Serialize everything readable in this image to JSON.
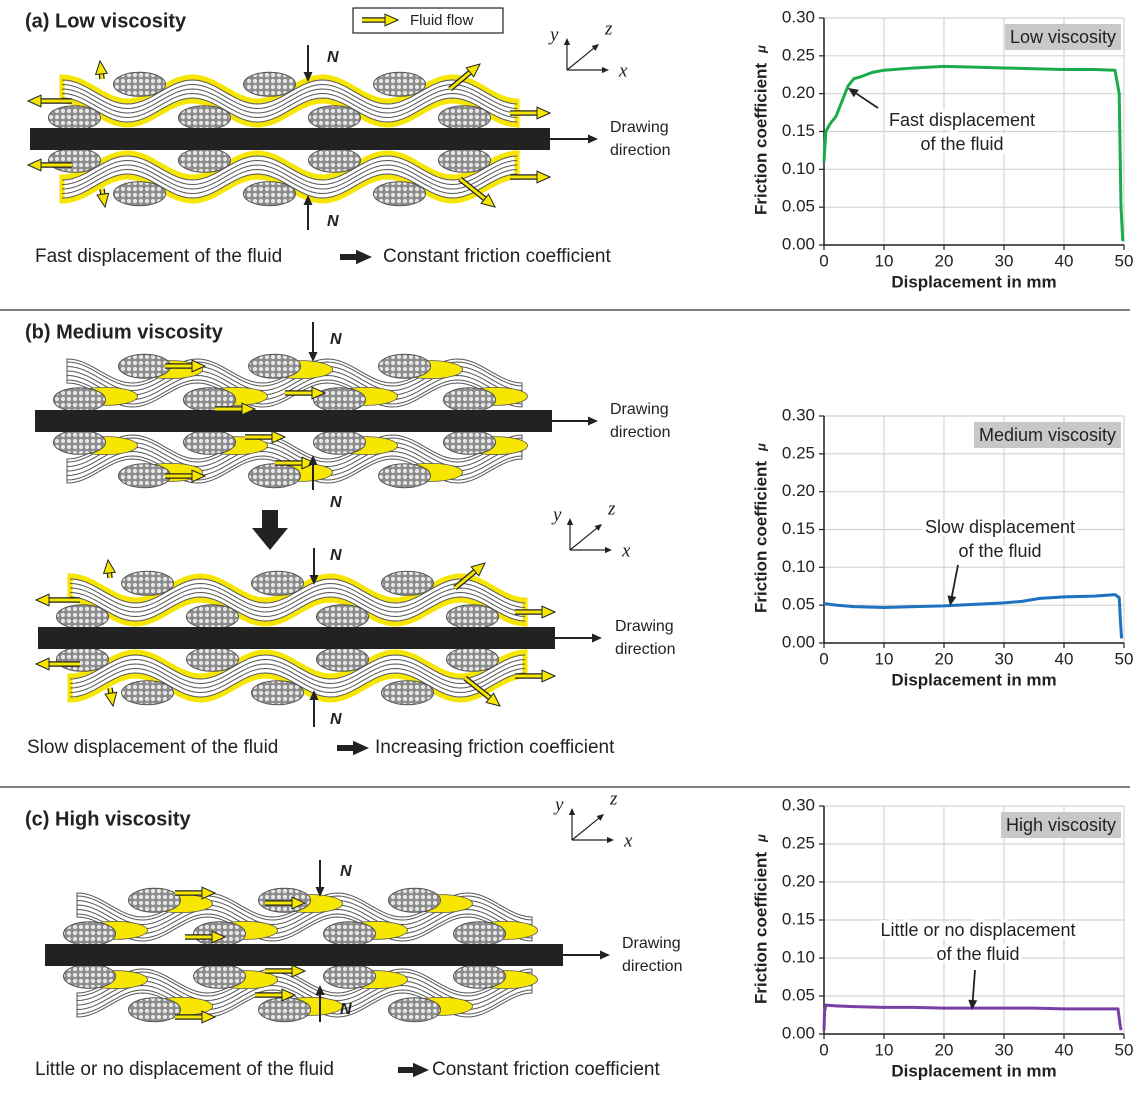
{
  "legend": "Fluid flow",
  "panels": [
    {
      "title": "(a) Low viscosity",
      "axes": [
        "y",
        "z",
        "x"
      ],
      "force": "N",
      "drawing": [
        "Drawing",
        "direction"
      ],
      "cause": "Fast displacement of the fluid",
      "effect": "Constant friction coefficient"
    },
    {
      "title": "(b) Medium viscosity",
      "axes": [
        "y",
        "z",
        "x"
      ],
      "force": "N",
      "drawing": [
        "Drawing",
        "direction"
      ],
      "cause": "Slow displacement of the fluid",
      "effect": "Increasing friction coefficient"
    },
    {
      "title": "(c) High viscosity",
      "axes": [
        "y",
        "z",
        "x"
      ],
      "force": "N",
      "drawing": [
        "Drawing",
        "direction"
      ],
      "cause": "Little or no displacement of the fluid",
      "effect": "Constant friction coefficient"
    }
  ],
  "chart_data": [
    {
      "type": "line",
      "xlabel": "Displacement in mm",
      "ylabel": "Friction coefficient",
      "ylabel_symbol": "μ",
      "annotation": [
        "Fast displacement",
        "of the fluid"
      ],
      "xlim": [
        0,
        50
      ],
      "ylim": [
        0,
        0.3
      ],
      "xticks": [
        0,
        10,
        20,
        30,
        40,
        50
      ],
      "yticks": [
        {
          "value": 0,
          "label": "0.00"
        },
        {
          "value": 0.05,
          "label": "0.05"
        },
        {
          "value": 0.1,
          "label": "0.10"
        },
        {
          "value": 0.15,
          "label": "0.15"
        },
        {
          "value": 0.2,
          "label": "0.20"
        },
        {
          "value": 0.25,
          "label": "0.25"
        },
        {
          "value": 0.3,
          "label": "0.30"
        }
      ],
      "grid": true,
      "x": [
        0,
        0.3,
        1,
        2,
        3,
        4,
        5,
        6,
        8,
        10,
        15,
        20,
        25,
        30,
        35,
        40,
        45,
        48.5,
        49.2,
        49.5,
        49.8
      ],
      "series": [
        {
          "name": "Low viscosity",
          "color": "#1aab4b",
          "values": [
            0.11,
            0.15,
            0.16,
            0.17,
            0.19,
            0.21,
            0.22,
            0.222,
            0.228,
            0.231,
            0.234,
            0.236,
            0.235,
            0.234,
            0.233,
            0.232,
            0.232,
            0.231,
            0.2,
            0.05,
            0.005
          ]
        }
      ]
    },
    {
      "type": "line",
      "xlabel": "Displacement in mm",
      "ylabel": "Friction coefficient",
      "ylabel_symbol": "μ",
      "annotation": [
        "Slow displacement",
        "of the fluid"
      ],
      "xlim": [
        0,
        50
      ],
      "ylim": [
        0,
        0.3
      ],
      "xticks": [
        0,
        10,
        20,
        30,
        40,
        50
      ],
      "yticks": [
        {
          "value": 0,
          "label": "0.00"
        },
        {
          "value": 0.05,
          "label": "0.05"
        },
        {
          "value": 0.1,
          "label": "0.10"
        },
        {
          "value": 0.15,
          "label": "0.15"
        },
        {
          "value": 0.2,
          "label": "0.20"
        },
        {
          "value": 0.25,
          "label": "0.25"
        },
        {
          "value": 0.3,
          "label": "0.30"
        }
      ],
      "grid": true,
      "x": [
        0,
        2,
        5,
        10,
        15,
        20,
        25,
        30,
        33,
        36,
        40,
        45,
        48.5,
        49.2,
        49.4,
        49.6
      ],
      "series": [
        {
          "name": "Medium viscosity",
          "color": "#1f72c0",
          "values": [
            0.052,
            0.05,
            0.048,
            0.047,
            0.048,
            0.049,
            0.051,
            0.053,
            0.055,
            0.059,
            0.061,
            0.062,
            0.064,
            0.06,
            0.03,
            0.006
          ]
        }
      ]
    },
    {
      "type": "line",
      "xlabel": "Displacement in mm",
      "ylabel": "Friction coefficient",
      "ylabel_symbol": "μ",
      "annotation": [
        "Little or no displacement",
        "of the fluid"
      ],
      "xlim": [
        0,
        50
      ],
      "ylim": [
        0,
        0.3
      ],
      "xticks": [
        0,
        10,
        20,
        30,
        40,
        50
      ],
      "yticks": [
        {
          "value": 0,
          "label": "0.00"
        },
        {
          "value": 0.05,
          "label": "0.05"
        },
        {
          "value": 0.1,
          "label": "0.10"
        },
        {
          "value": 0.15,
          "label": "0.15"
        },
        {
          "value": 0.2,
          "label": "0.20"
        },
        {
          "value": 0.25,
          "label": "0.25"
        },
        {
          "value": 0.3,
          "label": "0.30"
        }
      ],
      "grid": true,
      "x": [
        0,
        0.1,
        0.3,
        2,
        5,
        10,
        15,
        20,
        25,
        30,
        35,
        40,
        45,
        49,
        49.3,
        49.5
      ],
      "series": [
        {
          "name": "High viscosity",
          "color": "#7a3fa5",
          "values": [
            0.005,
            0.03,
            0.038,
            0.037,
            0.036,
            0.035,
            0.035,
            0.034,
            0.034,
            0.034,
            0.034,
            0.033,
            0.033,
            0.033,
            0.015,
            0.005
          ]
        }
      ]
    }
  ]
}
